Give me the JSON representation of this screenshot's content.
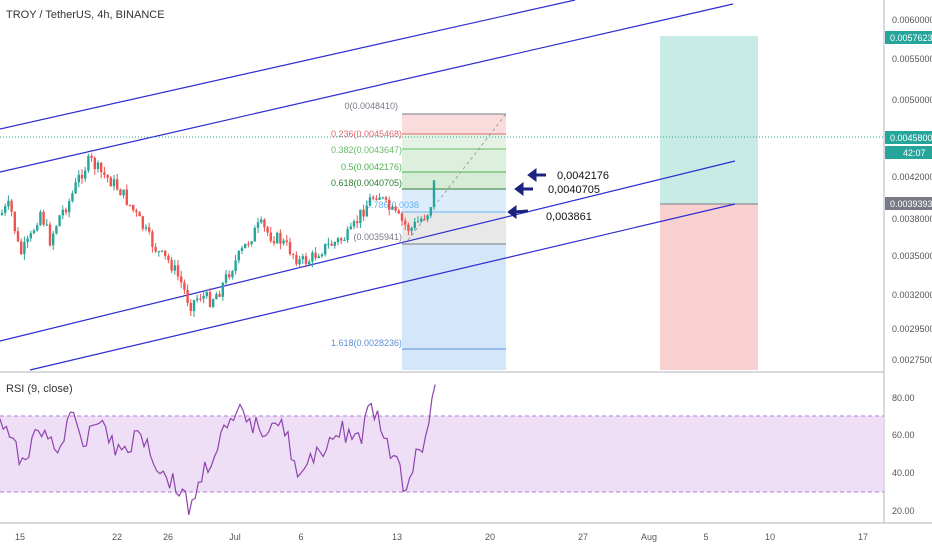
{
  "header": {
    "title": "TROY / TetherUS, 4h, BINANCE"
  },
  "rsi": {
    "label": "RSI (9, close)"
  },
  "price_axis": {
    "ticks": [
      "0.0060000",
      "0.0055000",
      "0.0050000",
      "0.0042000",
      "0.0038000",
      "0.0035000",
      "0.0032000",
      "0.0029500",
      "0.0027500"
    ],
    "tick_values": [
      0.006,
      0.0055,
      0.005,
      0.0042,
      0.0038,
      0.0035,
      0.0032,
      0.00295,
      0.00275
    ],
    "badges": [
      {
        "text": "0.0057623",
        "color": "#26a69a"
      },
      {
        "text": "0.0045800",
        "color": "#26a69a"
      },
      {
        "text": "42:07",
        "color": "#26a69a"
      },
      {
        "text": "0.0039393",
        "color": "#787b86"
      }
    ]
  },
  "rsi_axis": {
    "ticks": [
      "80.00",
      "60.00",
      "40.00",
      "20.00"
    ],
    "upper": 70,
    "lower": 30
  },
  "time_axis": {
    "labels": [
      "15",
      "22",
      "26",
      "Jul",
      "6",
      "13",
      "20",
      "27",
      "Aug",
      "5",
      "10",
      "17"
    ]
  },
  "fib": {
    "levels": [
      {
        "text": "0(0.0048410)",
        "color": "#787b86"
      },
      {
        "text": "0.236(0.0045468)",
        "color": "#e06a6a"
      },
      {
        "text": "0.382(0.0043647)",
        "color": "#66bb6a"
      },
      {
        "text": "0.5(0.0042176)",
        "color": "#4caf50"
      },
      {
        "text": "0.618(0.0040705)",
        "color": "#2e7d32"
      },
      {
        "text": "0.786(0.0038",
        "color": "#64b5f6"
      },
      {
        "text": "(0.0035941)",
        "color": "#787b86"
      },
      {
        "text": "1.618(0.0028236)",
        "color": "#5b8fd6"
      }
    ]
  },
  "annotations": [
    {
      "text": "0,0042176"
    },
    {
      "text": "0,0040705"
    },
    {
      "text": "0,003861"
    }
  ],
  "colors": {
    "channel": "#2c2cd0",
    "up": "#26a69a",
    "down": "#ef5350",
    "rsi_line": "#8e44ad",
    "rsi_band": "#ead7f5",
    "profit": "#c8ebe6",
    "loss": "#f9d0d0",
    "arrow": "#1a237e"
  }
}
